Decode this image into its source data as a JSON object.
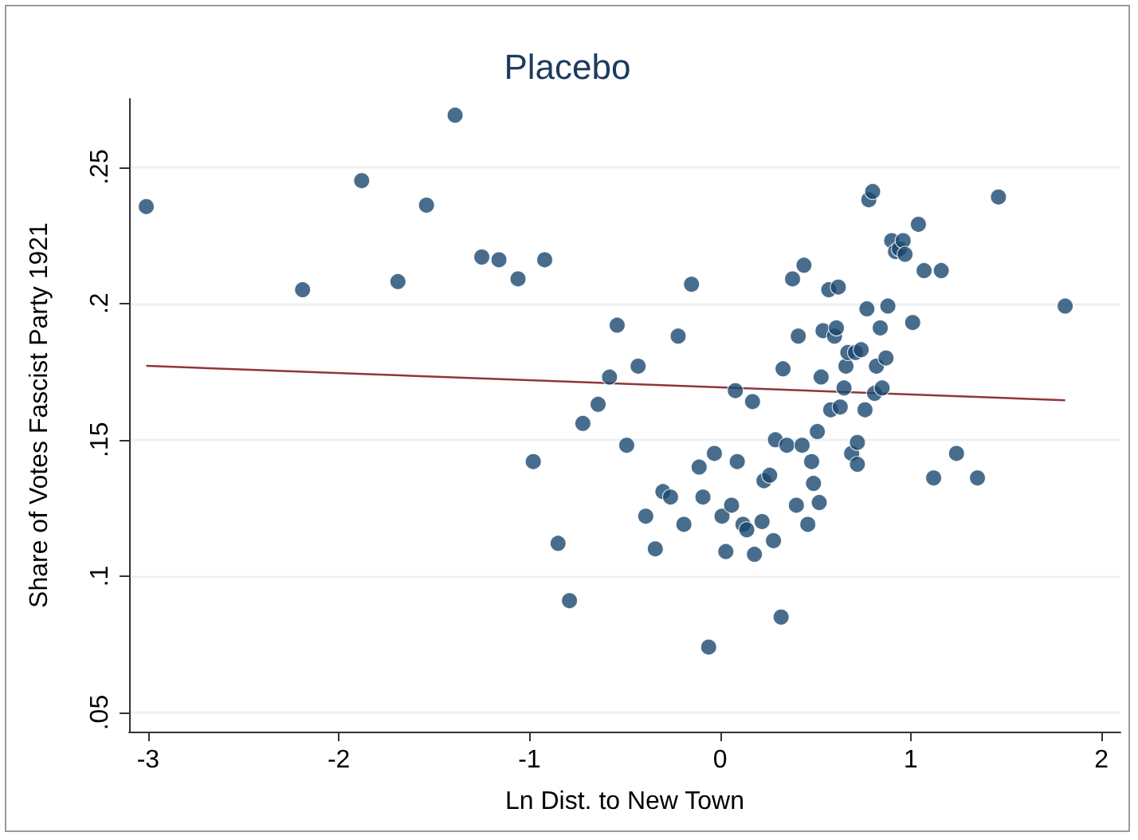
{
  "chart_data": {
    "type": "scatter",
    "title": "Placebo",
    "xlabel": "Ln Dist. to New Town",
    "ylabel": "Share of Votes Fascist Party 1921",
    "xlim": [
      -3.1,
      2.1
    ],
    "xticks": [
      -3,
      -2,
      -1,
      0,
      1,
      2
    ],
    "ylim": [
      0.043,
      0.275
    ],
    "yticks": [
      {
        "value": 0.05,
        "label": ".05"
      },
      {
        "value": 0.1,
        "label": ".1"
      },
      {
        "value": 0.15,
        "label": ".15"
      },
      {
        "value": 0.2,
        "label": ".2"
      },
      {
        "value": 0.25,
        "label": ".25"
      }
    ],
    "grid": "y",
    "marker": "circle",
    "series": [
      {
        "color": "#1a476f",
        "x": [
          -3.01,
          -2.19,
          -1.88,
          -1.69,
          -1.54,
          -1.39,
          -1.25,
          -1.16,
          -1.06,
          -0.92,
          -0.98,
          -0.85,
          -0.79,
          -0.72,
          -0.64,
          -0.58,
          -0.54,
          -0.49,
          -0.43,
          -0.39,
          -0.34,
          -0.3,
          -0.26,
          -0.22,
          -0.19,
          -0.15,
          -0.11,
          -0.09,
          -0.06,
          -0.03,
          0.01,
          0.03,
          0.06,
          0.08,
          0.09,
          0.12,
          0.14,
          0.17,
          0.18,
          0.22,
          0.23,
          0.26,
          0.28,
          0.29,
          0.32,
          0.33,
          0.35,
          0.38,
          0.4,
          0.41,
          0.43,
          0.44,
          0.46,
          0.48,
          0.49,
          0.51,
          0.52,
          0.53,
          0.54,
          0.57,
          0.58,
          0.6,
          0.61,
          0.62,
          0.63,
          0.65,
          0.66,
          0.67,
          0.69,
          0.71,
          0.72,
          0.72,
          0.74,
          0.76,
          0.77,
          0.78,
          0.8,
          0.81,
          0.82,
          0.84,
          0.85,
          0.87,
          0.88,
          0.9,
          0.92,
          0.94,
          0.96,
          0.97,
          1.01,
          1.04,
          1.07,
          1.12,
          1.16,
          1.24,
          1.35,
          1.46,
          1.81
        ],
        "values": [
          0.2355,
          0.205,
          0.245,
          0.208,
          0.236,
          0.269,
          0.217,
          0.216,
          0.209,
          0.216,
          0.142,
          0.112,
          0.091,
          0.156,
          0.163,
          0.173,
          0.192,
          0.148,
          0.177,
          0.122,
          0.11,
          0.131,
          0.129,
          0.188,
          0.119,
          0.207,
          0.14,
          0.129,
          0.074,
          0.145,
          0.122,
          0.109,
          0.126,
          0.168,
          0.142,
          0.119,
          0.117,
          0.164,
          0.108,
          0.12,
          0.135,
          0.137,
          0.113,
          0.15,
          0.085,
          0.176,
          0.148,
          0.209,
          0.126,
          0.188,
          0.148,
          0.214,
          0.119,
          0.142,
          0.134,
          0.153,
          0.127,
          0.173,
          0.19,
          0.205,
          0.161,
          0.188,
          0.191,
          0.206,
          0.162,
          0.169,
          0.177,
          0.182,
          0.145,
          0.182,
          0.141,
          0.149,
          0.183,
          0.161,
          0.198,
          0.238,
          0.241,
          0.167,
          0.177,
          0.191,
          0.169,
          0.18,
          0.199,
          0.223,
          0.219,
          0.22,
          0.223,
          0.218,
          0.193,
          0.229,
          0.212,
          0.136,
          0.212,
          0.145,
          0.136,
          0.239,
          0.199
        ]
      },
      {
        "type": "line",
        "color": "#90353b",
        "marker": "none",
        "line_style": "solid",
        "x": [
          -3.01,
          1.81
        ],
        "values": [
          0.1771,
          0.1645
        ]
      }
    ]
  }
}
